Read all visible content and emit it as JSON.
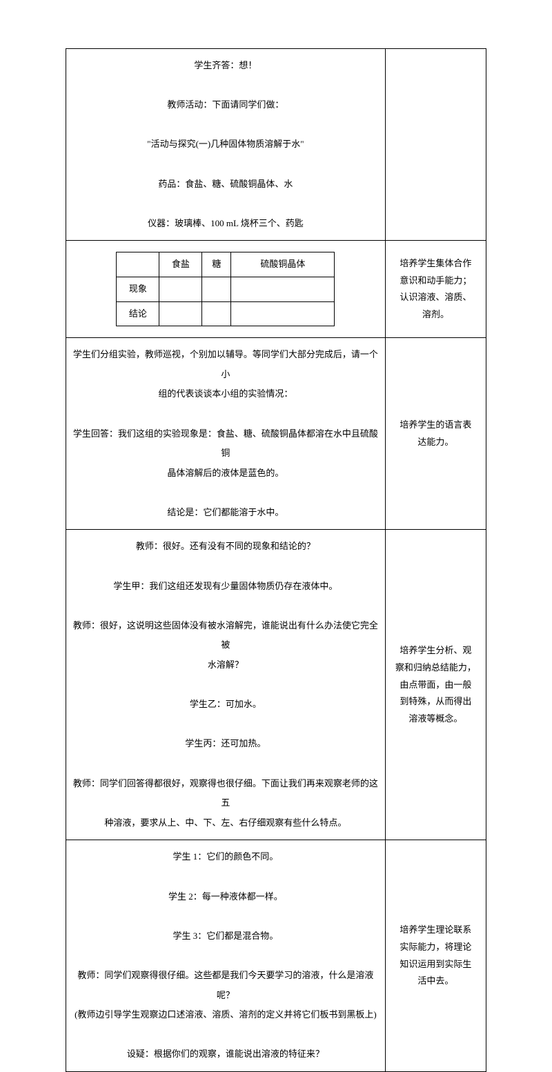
{
  "rows": [
    {
      "left_lines": [
        "学生齐答：想！",
        "",
        "教师活动：下面请同学们做：",
        "",
        "\"活动与探究(一)几种固体物质溶解于水\"",
        "",
        "药品：食盐、糖、硫酸铜晶体、水",
        "",
        "仪器：玻璃棒、100 mL 烧杯三个、药匙"
      ],
      "right_lines": []
    },
    {
      "has_inner_table": true,
      "inner": {
        "headers": [
          "",
          "食盐",
          "糖",
          "硫酸铜晶体"
        ],
        "row_labels": [
          "现象",
          "结论"
        ]
      },
      "right_lines": [
        "培养学生集体合作",
        "意识和动手能力；",
        "认识溶液、溶质、",
        "溶剂。"
      ]
    },
    {
      "left_lines": [
        "学生们分组实验，教师巡视，个别加以辅导。等同学们大部分完成后，请一个小",
        "组的代表谈谈本小组的实验情况：",
        "",
        "学生回答：我们这组的实验现象是：食盐、糖、硫酸铜晶体都溶在水中且硫酸铜",
        "晶体溶解后的液体是蓝色的。",
        "",
        "结论是：它们都能溶于水中。"
      ],
      "right_lines": [
        "培养学生的语言表",
        "达能力。"
      ]
    },
    {
      "left_lines": [
        "教师：很好。还有没有不同的现象和结论的？",
        "",
        "学生甲：我们这组还发现有少量固体物质仍存在液体中。",
        "",
        "教师：很好，这说明这些固体没有被水溶解完，谁能说出有什么办法使它完全被",
        "水溶解？",
        "",
        "学生乙：可加水。",
        "",
        "学生丙：还可加热。",
        "",
        "教师：同学们回答得都很好，观察得也很仔细。下面让我们再来观察老师的这五",
        "种溶液，要求从上、中、下、左、右仔细观察有些什么特点。"
      ],
      "right_lines": [
        "培养学生分析、观",
        "察和归纳总结能力，",
        "由点带面，由一般",
        "到特殊，从而得出",
        "溶液等概念。"
      ]
    },
    {
      "left_lines": [
        "学生 1：它们的颜色不同。",
        "",
        "学生 2：每一种液体都一样。",
        "",
        "学生 3：它们都是混合物。",
        "",
        "教师：同学们观察得很仔细。这些都是我们今天要学习的溶液，什么是溶液呢？",
        "(教师边引导学生观察边口述溶液、溶质、溶剂的定义并将它们板书到黑板上)",
        "",
        "设疑：根据你们的观察，谁能说出溶液的特征来？"
      ],
      "right_lines": [
        "培养学生理论联系",
        "实际能力，将理论",
        "知识运用到实际生",
        "活中去。"
      ]
    }
  ]
}
